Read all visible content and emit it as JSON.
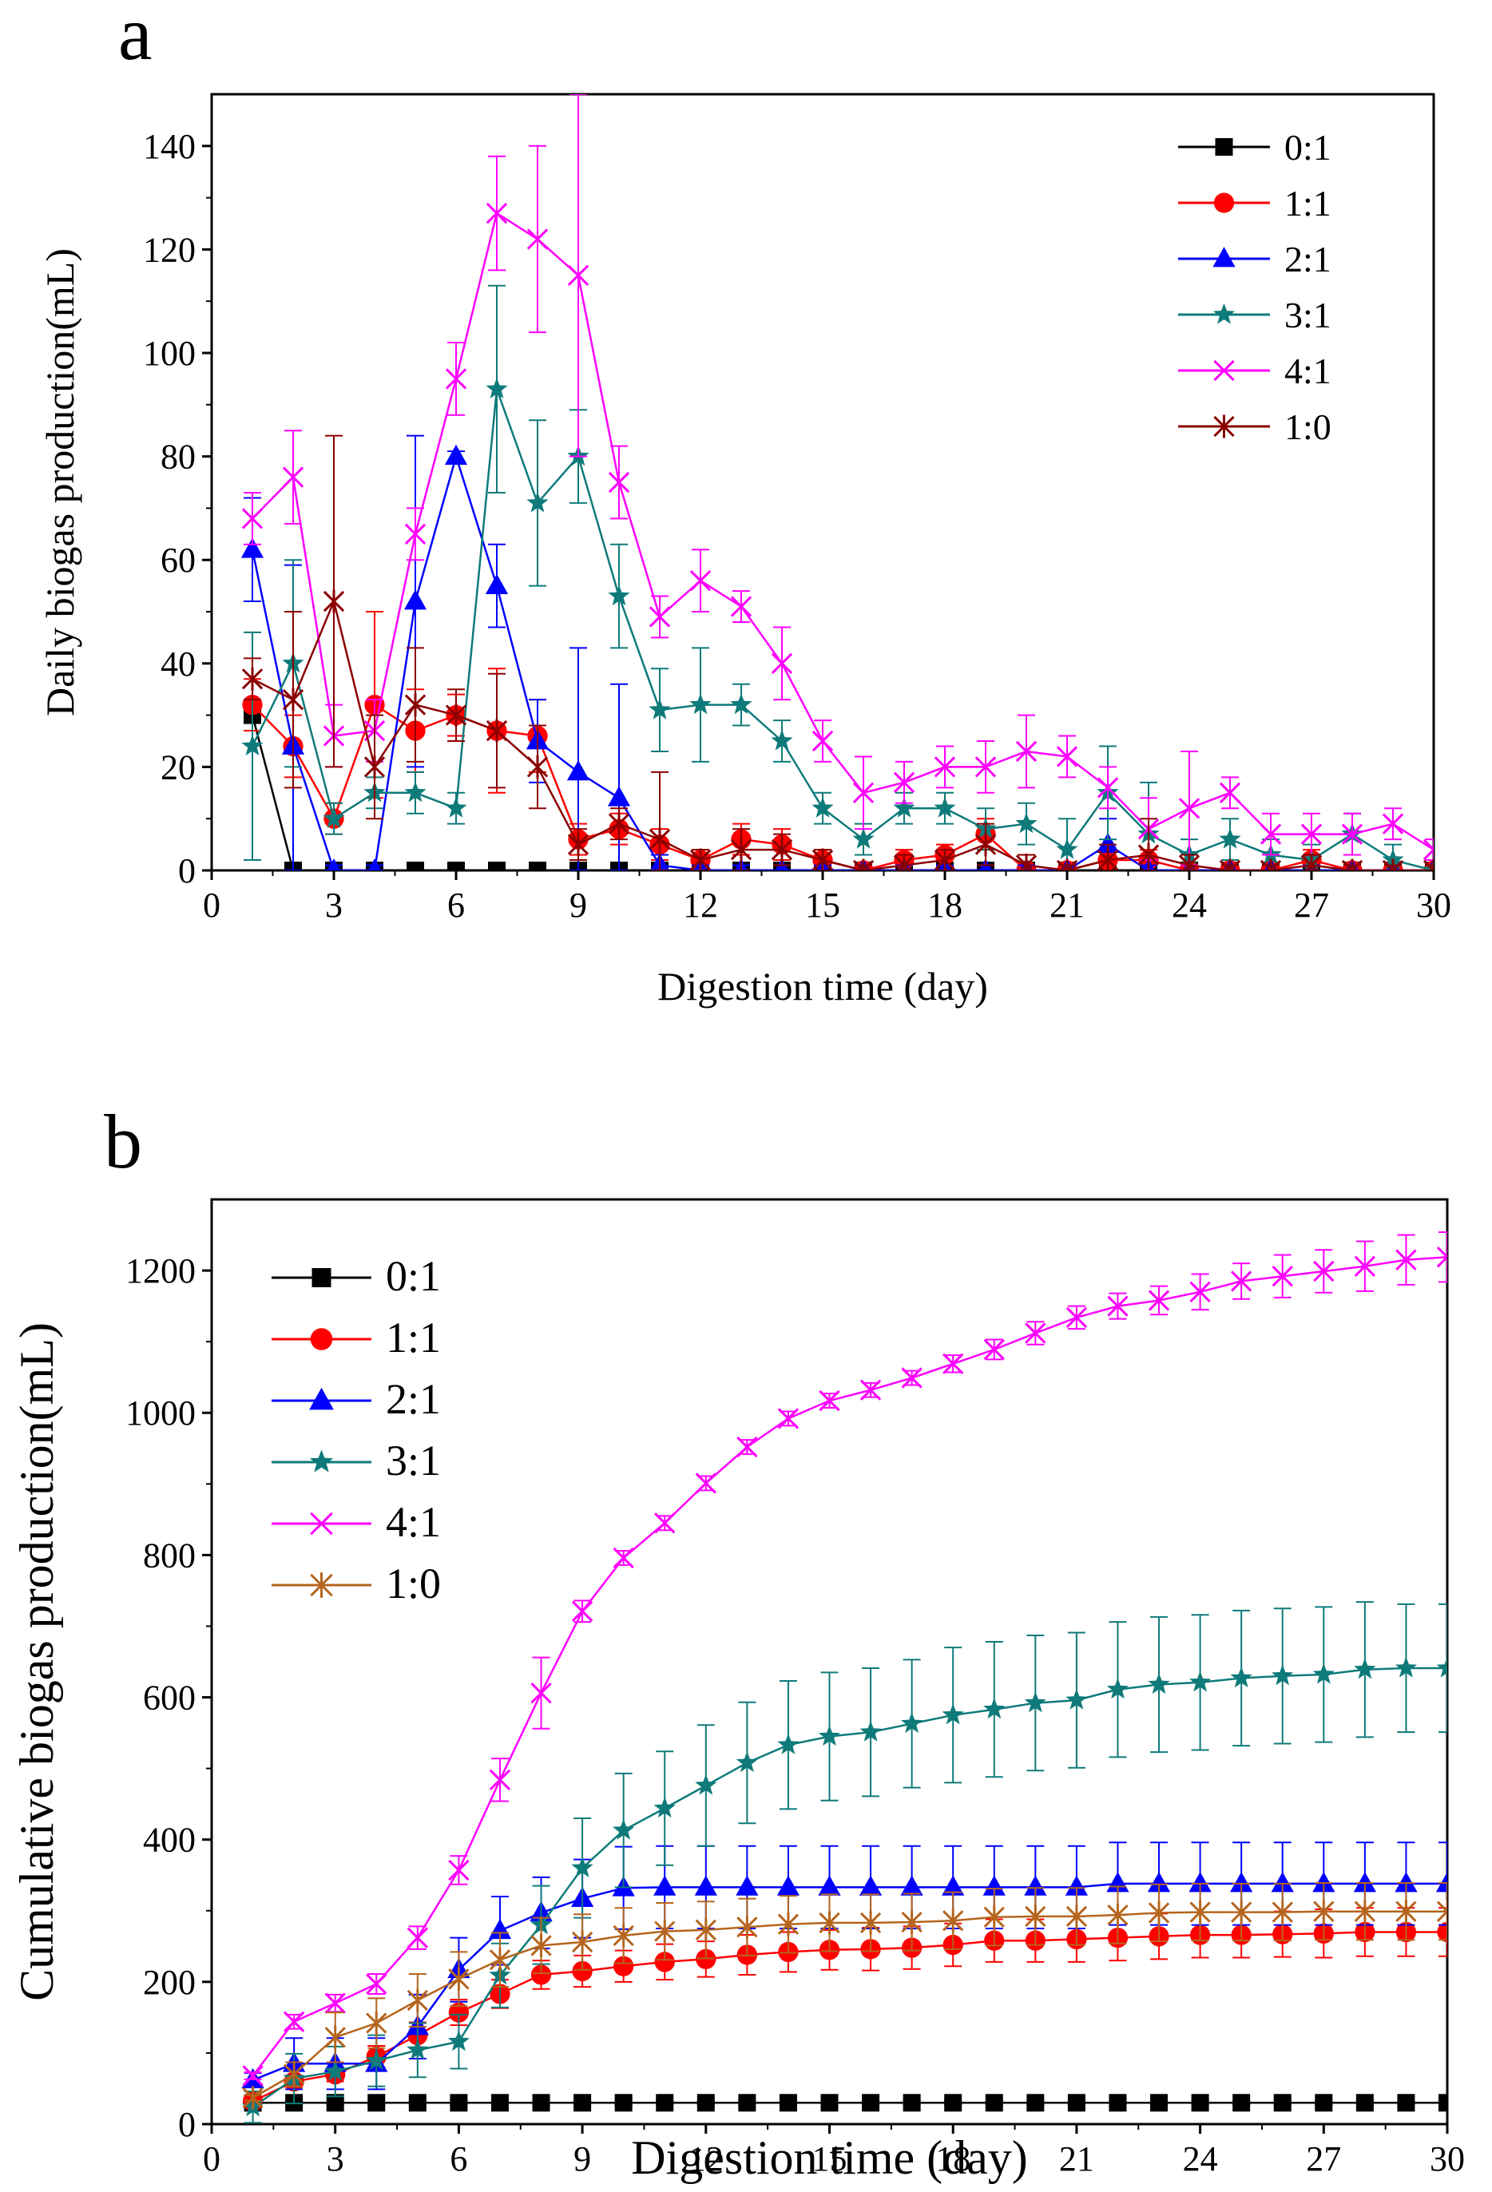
{
  "figure": {
    "panels": [
      "a",
      "b"
    ]
  },
  "chart_data": [
    {
      "panel": "a",
      "type": "line",
      "title": "",
      "xlabel": "Digestion time (day)",
      "ylabel": "Daily biogas production(mL)",
      "xlim": [
        0,
        30
      ],
      "ylim": [
        0,
        150
      ],
      "xticks": [
        0,
        3,
        6,
        9,
        12,
        15,
        18,
        21,
        24,
        27,
        30
      ],
      "yticks": [
        0,
        20,
        40,
        60,
        80,
        100,
        120,
        140
      ],
      "legend_position": "top-right",
      "x": [
        1,
        2,
        3,
        4,
        5,
        6,
        7,
        8,
        9,
        10,
        11,
        12,
        13,
        14,
        15,
        16,
        17,
        18,
        19,
        20,
        21,
        22,
        23,
        24,
        25,
        26,
        27,
        28,
        29,
        30
      ],
      "series": [
        {
          "name": "0:1",
          "color": "#000000",
          "marker": "square",
          "values": [
            30,
            0,
            0,
            0,
            0,
            0,
            0,
            0,
            0,
            0,
            0,
            0,
            0,
            0,
            0,
            0,
            0,
            0,
            0,
            0,
            0,
            0,
            0,
            0,
            0,
            0,
            0,
            0,
            0,
            0
          ],
          "errors": [
            3,
            0,
            0,
            0,
            0,
            0,
            0,
            0,
            0,
            0,
            0,
            0,
            0,
            0,
            0,
            0,
            0,
            0,
            0,
            0,
            0,
            0,
            0,
            0,
            0,
            0,
            0,
            0,
            0,
            0
          ]
        },
        {
          "name": "1:1",
          "color": "#ff0000",
          "marker": "circle",
          "values": [
            32,
            24,
            10,
            32,
            27,
            30,
            27,
            26,
            6,
            8,
            5,
            2,
            6,
            5,
            2,
            0,
            2,
            3,
            7,
            0,
            0,
            2,
            2,
            0,
            0,
            0,
            2,
            0,
            0,
            0
          ],
          "errors": [
            5,
            6,
            3,
            18,
            8,
            4,
            12,
            7,
            3,
            3,
            3,
            2,
            3,
            3,
            2,
            1,
            2,
            2,
            3,
            1,
            1,
            2,
            2,
            1,
            1,
            1,
            2,
            1,
            1,
            1
          ]
        },
        {
          "name": "2:1",
          "color": "#0000ff",
          "marker": "triangle",
          "values": [
            62,
            24,
            0,
            0,
            52,
            80,
            55,
            25,
            19,
            14,
            1,
            0,
            0,
            0,
            0,
            0,
            0,
            0,
            0,
            0,
            0,
            5,
            0,
            0,
            0,
            0,
            0,
            0,
            0,
            0
          ],
          "errors": [
            10,
            35,
            1,
            1,
            32,
            1,
            8,
            8,
            24,
            22,
            2,
            1,
            1,
            1,
            1,
            1,
            1,
            1,
            1,
            1,
            1,
            5,
            1,
            1,
            1,
            1,
            1,
            1,
            1,
            1
          ]
        },
        {
          "name": "3:1",
          "color": "#0f7a7a",
          "marker": "star",
          "values": [
            24,
            40,
            10,
            15,
            15,
            12,
            93,
            71,
            80,
            53,
            31,
            32,
            32,
            25,
            12,
            6,
            12,
            12,
            8,
            9,
            4,
            15,
            7,
            3,
            6,
            3,
            2,
            7,
            2,
            0
          ],
          "errors": [
            22,
            20,
            3,
            3,
            4,
            3,
            20,
            16,
            9,
            10,
            8,
            11,
            4,
            4,
            3,
            3,
            3,
            3,
            4,
            4,
            6,
            9,
            10,
            3,
            4,
            3,
            3,
            4,
            3,
            1
          ]
        },
        {
          "name": "4:1",
          "color": "#ff00ff",
          "marker": "x",
          "values": [
            68,
            76,
            26,
            27,
            65,
            95,
            127,
            122,
            115,
            75,
            49,
            56,
            51,
            40,
            25,
            15,
            17,
            20,
            20,
            23,
            22,
            16,
            8,
            12,
            15,
            7,
            7,
            7,
            9,
            4
          ],
          "errors": [
            5,
            9,
            6,
            6,
            5,
            7,
            11,
            18,
            35,
            7,
            4,
            6,
            3,
            7,
            4,
            7,
            4,
            4,
            5,
            7,
            4,
            4,
            6,
            11,
            3,
            4,
            4,
            4,
            3,
            2
          ]
        },
        {
          "name": "1:0",
          "color": "#8b0000",
          "marker": "asterisk",
          "values": [
            37,
            33,
            52,
            20,
            32,
            30,
            27,
            20,
            5,
            9,
            6,
            2,
            4,
            4,
            2,
            0,
            1,
            2,
            5,
            1,
            0,
            2,
            3,
            1,
            0,
            0,
            1,
            0,
            0,
            0
          ],
          "errors": [
            4,
            17,
            32,
            10,
            11,
            5,
            11,
            8,
            3,
            3,
            13,
            2,
            4,
            3,
            2,
            1,
            2,
            2,
            4,
            2,
            1,
            3,
            7,
            2,
            1,
            1,
            2,
            1,
            1,
            1
          ]
        }
      ]
    },
    {
      "panel": "b",
      "type": "line",
      "title": "",
      "xlabel": "Digestion time (day)",
      "ylabel": "Cumulative biogas production(mL)",
      "xlim": [
        0,
        30
      ],
      "ylim": [
        0,
        1300
      ],
      "xticks": [
        0,
        3,
        6,
        9,
        12,
        15,
        18,
        21,
        24,
        27,
        30
      ],
      "yticks": [
        0,
        200,
        400,
        600,
        800,
        1000,
        1200
      ],
      "legend_position": "top-left",
      "x": [
        1,
        2,
        3,
        4,
        5,
        6,
        7,
        8,
        9,
        10,
        11,
        12,
        13,
        14,
        15,
        16,
        17,
        18,
        19,
        20,
        21,
        22,
        23,
        24,
        25,
        26,
        27,
        28,
        29,
        30
      ],
      "series": [
        {
          "name": "0:1",
          "color": "#000000",
          "marker": "square",
          "values": [
            30,
            30,
            30,
            30,
            30,
            30,
            30,
            30,
            30,
            30,
            30,
            30,
            30,
            30,
            30,
            30,
            30,
            30,
            30,
            30,
            30,
            30,
            30,
            30,
            30,
            30,
            30,
            30,
            30,
            30
          ],
          "errors": [
            3,
            3,
            3,
            3,
            3,
            3,
            3,
            3,
            3,
            3,
            3,
            3,
            3,
            3,
            3,
            3,
            3,
            3,
            3,
            3,
            3,
            3,
            3,
            3,
            3,
            3,
            3,
            3,
            3,
            3
          ]
        },
        {
          "name": "1:1",
          "color": "#ff0000",
          "marker": "circle",
          "values": [
            32,
            60,
            70,
            95,
            125,
            157,
            183,
            210,
            215,
            222,
            228,
            232,
            238,
            242,
            245,
            246,
            248,
            252,
            258,
            258,
            260,
            262,
            264,
            266,
            266,
            267,
            268,
            270,
            270,
            270
          ],
          "errors": [
            5,
            8,
            10,
            15,
            18,
            18,
            20,
            20,
            22,
            22,
            25,
            25,
            28,
            28,
            28,
            30,
            30,
            30,
            30,
            30,
            32,
            32,
            32,
            32,
            32,
            32,
            34,
            34,
            34,
            34
          ]
        },
        {
          "name": "2:1",
          "color": "#0000ff",
          "marker": "triangle",
          "values": [
            62,
            85,
            85,
            85,
            137,
            217,
            272,
            297,
            317,
            332,
            333,
            333,
            333,
            333,
            333,
            333,
            333,
            333,
            333,
            333,
            333,
            338,
            338,
            338,
            338,
            338,
            338,
            338,
            338,
            338
          ],
          "errors": [
            10,
            36,
            36,
            36,
            45,
            45,
            48,
            50,
            55,
            58,
            58,
            58,
            58,
            58,
            58,
            58,
            58,
            58,
            58,
            58,
            58,
            58,
            58,
            58,
            58,
            58,
            58,
            58,
            58,
            58
          ]
        },
        {
          "name": "3:1",
          "color": "#0f7a7a",
          "marker": "star",
          "values": [
            24,
            64,
            74,
            89,
            104,
            116,
            209,
            280,
            360,
            413,
            444,
            476,
            508,
            533,
            545,
            551,
            563,
            575,
            583,
            592,
            596,
            611,
            618,
            621,
            627,
            630,
            632,
            639,
            641,
            641
          ],
          "errors": [
            22,
            35,
            35,
            36,
            38,
            38,
            45,
            55,
            70,
            80,
            80,
            85,
            85,
            90,
            90,
            90,
            90,
            95,
            95,
            95,
            95,
            95,
            95,
            95,
            95,
            95,
            95,
            95,
            90,
            90
          ]
        },
        {
          "name": "4:1",
          "color": "#ff00ff",
          "marker": "x",
          "values": [
            68,
            144,
            170,
            197,
            262,
            357,
            484,
            606,
            721,
            796,
            845,
            901,
            952,
            992,
            1017,
            1032,
            1049,
            1069,
            1089,
            1112,
            1134,
            1150,
            1158,
            1170,
            1185,
            1192,
            1199,
            1206,
            1215,
            1219
          ],
          "errors": [
            5,
            10,
            12,
            14,
            16,
            20,
            30,
            50,
            15,
            10,
            10,
            10,
            10,
            10,
            10,
            10,
            10,
            12,
            14,
            16,
            16,
            18,
            20,
            25,
            25,
            30,
            30,
            35,
            35,
            35
          ]
        },
        {
          "name": "1:0",
          "color": "#b5651d",
          "marker": "asterisk",
          "values": [
            37,
            70,
            122,
            142,
            174,
            204,
            231,
            251,
            256,
            265,
            271,
            273,
            277,
            281,
            283,
            283,
            284,
            286,
            291,
            292,
            292,
            294,
            297,
            298,
            298,
            298,
            299,
            299,
            299,
            299
          ],
          "errors": [
            4,
            17,
            35,
            35,
            37,
            38,
            38,
            39,
            39,
            39,
            40,
            40,
            40,
            40,
            40,
            40,
            40,
            40,
            40,
            40,
            40,
            40,
            40,
            40,
            40,
            40,
            40,
            40,
            40,
            40
          ]
        }
      ]
    }
  ]
}
